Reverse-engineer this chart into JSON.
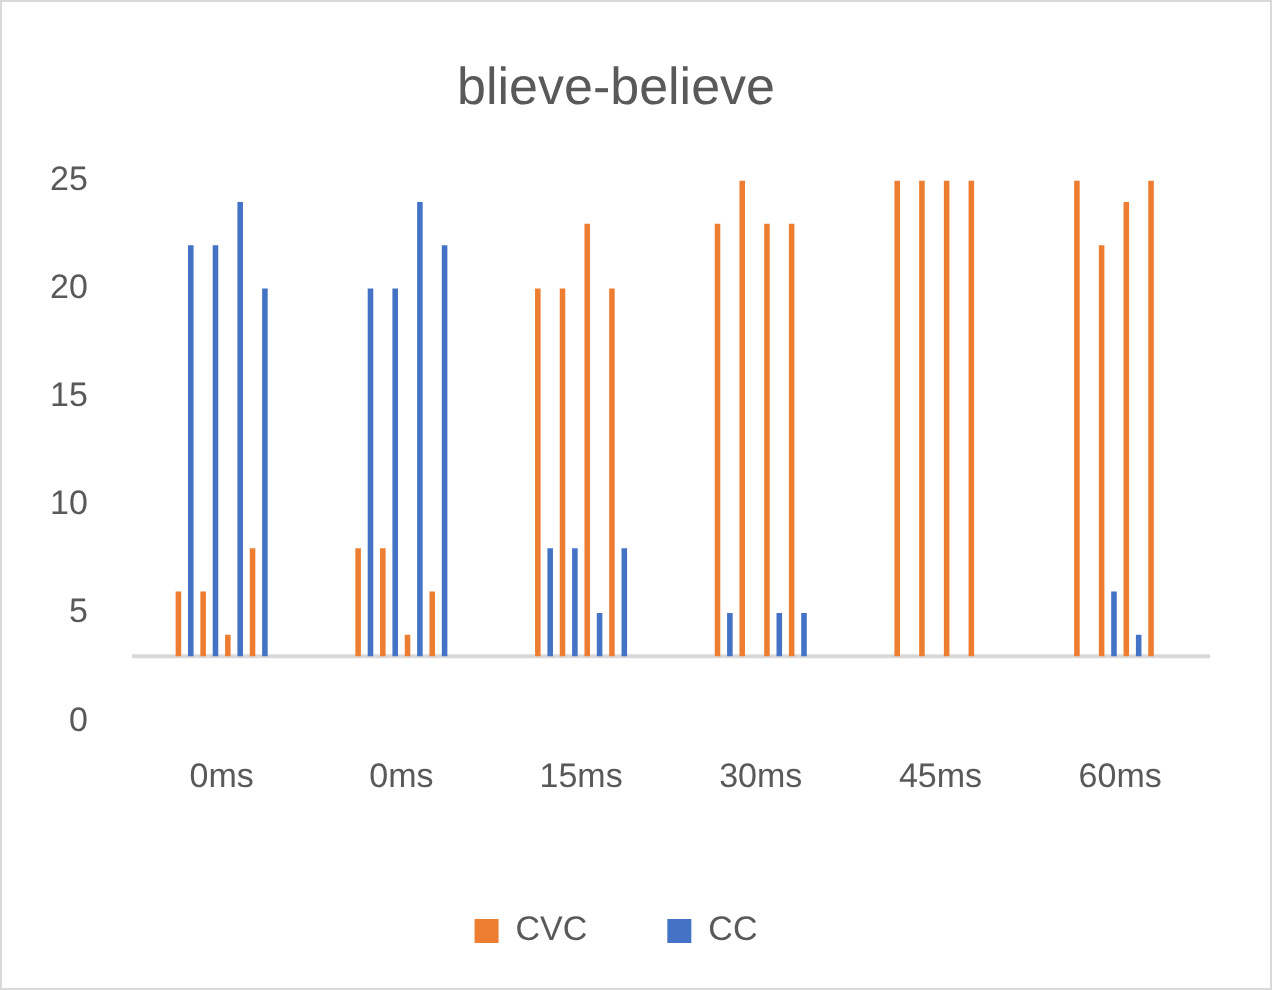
{
  "chart_data": {
    "type": "bar",
    "title": "blieve-believe",
    "categories": [
      "0ms",
      "0ms",
      "15ms",
      "30ms",
      "45ms",
      "60ms"
    ],
    "series": [
      {
        "name": "CVC",
        "color": "#ed7d31",
        "base": [
          3,
          3,
          3,
          3,
          3,
          3
        ],
        "values": [
          3,
          5,
          17,
          20,
          22,
          22
        ]
      },
      {
        "name": "CC",
        "color": "#4472c4",
        "base": [
          3,
          3,
          3,
          3,
          null,
          null
        ],
        "values": [
          19,
          17,
          5,
          2,
          null,
          null
        ]
      },
      {
        "color": "#ed7d31",
        "base": [
          3,
          3,
          3,
          3,
          3,
          3
        ],
        "values": [
          3,
          5,
          17,
          22,
          22,
          19
        ]
      },
      {
        "color": "#4472c4",
        "base": [
          3,
          3,
          3,
          null,
          null,
          3
        ],
        "values": [
          19,
          17,
          5,
          null,
          null,
          3
        ]
      },
      {
        "color": "#ed7d31",
        "base": [
          3,
          3,
          3,
          3,
          3,
          3
        ],
        "values": [
          1,
          1,
          20,
          20,
          22,
          21
        ]
      },
      {
        "color": "#4472c4",
        "base": [
          3,
          3,
          3,
          3,
          null,
          3
        ],
        "values": [
          21,
          21,
          2,
          2,
          null,
          1
        ]
      },
      {
        "color": "#ed7d31",
        "base": [
          3,
          3,
          3,
          3,
          3,
          3
        ],
        "values": [
          5,
          3,
          17,
          20,
          22,
          22
        ]
      },
      {
        "color": "#4472c4",
        "base": [
          3,
          3,
          3,
          3,
          null,
          null
        ],
        "values": [
          17,
          19,
          5,
          2,
          null,
          null
        ]
      }
    ],
    "ylim": [
      0,
      25
    ],
    "yticks": [
      0,
      5,
      10,
      15,
      20,
      25
    ],
    "grid": false,
    "legend": "bottom",
    "ref_lines": [
      {
        "axis": "y",
        "value": 3,
        "color": "#d9d9d9"
      }
    ]
  }
}
